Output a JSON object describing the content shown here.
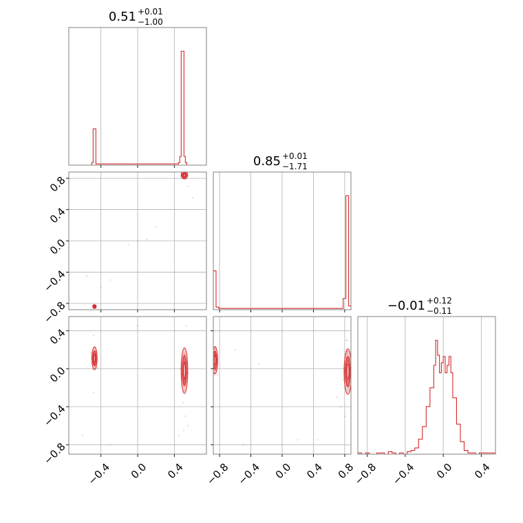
{
  "chart_data": {
    "type": "corner",
    "color": "#d62728",
    "grid": true,
    "titles": [
      {
        "value": "0.51",
        "plus": "+0.01",
        "minus": "−1.00"
      },
      {
        "value": "0.85",
        "plus": "+0.01",
        "minus": "−1.71"
      },
      {
        "value": "−0.01",
        "plus": "+0.12",
        "minus": "−0.11"
      }
    ],
    "params": [
      {
        "range": [
          -0.75,
          0.75
        ],
        "ticks": [
          -0.4,
          0.0,
          0.4
        ],
        "tick_labels": [
          "−0.4",
          "0.0",
          "0.4"
        ]
      },
      {
        "range": [
          -0.88,
          0.88
        ],
        "ticks": [
          -0.8,
          -0.4,
          0.0,
          0.4,
          0.8
        ],
        "tick_labels": [
          "−0.8",
          "−0.4",
          "0.0",
          "0.4",
          "0.8"
        ]
      },
      {
        "range": [
          -0.9,
          0.55
        ],
        "ticks": [
          -0.8,
          -0.4,
          0.0,
          0.4
        ],
        "tick_labels": [
          "−0.8",
          "−0.4",
          "0.0",
          "0.4"
        ]
      }
    ],
    "x_tick_labels_p3": [
      "−0.8",
      "−0.4",
      "0.0",
      "0.4"
    ],
    "histograms": [
      {
        "edges": [
          -0.5,
          -0.485,
          -0.47,
          -0.455,
          0.43,
          0.445,
          0.46,
          0.475,
          0.49,
          0.505,
          0.52,
          0.535
        ],
        "counts": [
          0.02,
          0.29,
          0.29,
          0.01,
          0.01,
          0.02,
          0.07,
          0.91,
          0.91,
          0.07,
          0.02
        ]
      },
      {
        "edges": [
          -0.88,
          -0.845,
          -0.81,
          0.78,
          0.815,
          0.85,
          0.88
        ],
        "counts": [
          0.31,
          0.02,
          0.01,
          0.09,
          0.91,
          0.03
        ]
      },
      {
        "edges": [
          -0.9,
          -0.86,
          -0.82,
          -0.78,
          -0.74,
          -0.7,
          -0.66,
          -0.62,
          -0.58,
          -0.54,
          -0.5,
          -0.46,
          -0.42,
          -0.38,
          -0.34,
          -0.3,
          -0.26,
          -0.22,
          -0.18,
          -0.14,
          -0.1,
          -0.08,
          -0.06,
          -0.04,
          -0.02,
          0.0,
          0.02,
          0.04,
          0.06,
          0.08,
          0.1,
          0.14,
          0.18,
          0.22,
          0.26,
          0.3,
          0.34,
          0.38,
          0.42,
          0.46,
          0.5,
          0.55
        ],
        "counts": [
          0.01,
          0.0,
          0.01,
          0.0,
          0.0,
          0.01,
          0.01,
          0.0,
          0.02,
          0.01,
          0.0,
          0.01,
          0.0,
          0.02,
          0.03,
          0.05,
          0.12,
          0.22,
          0.38,
          0.53,
          0.71,
          0.91,
          0.79,
          0.65,
          0.73,
          0.78,
          0.65,
          0.71,
          0.78,
          0.65,
          0.45,
          0.24,
          0.1,
          0.03,
          0.01,
          0.01,
          0.0,
          0.01,
          0.01,
          0.01,
          0.01
        ]
      }
    ],
    "scatter": [
      {
        "x": 0,
        "y": 1,
        "clusters": [
          {
            "cx": 0.51,
            "cy": 0.84,
            "sx": 0.015,
            "sy": 0.02
          },
          {
            "cx": -0.47,
            "cy": -0.84,
            "sx": 0.008,
            "sy": 0.01
          }
        ],
        "outliers": [
          [
            0.0,
            0.0
          ],
          [
            0.1,
            0.02
          ],
          [
            0.2,
            0.18
          ],
          [
            -0.3,
            -0.5
          ],
          [
            -0.4,
            -0.6
          ],
          [
            -0.55,
            -0.45
          ],
          [
            0.6,
            0.55
          ],
          [
            0.55,
            0.7
          ],
          [
            -0.1,
            -0.05
          ]
        ]
      },
      {
        "x": 0,
        "y": 2,
        "clusters": [
          {
            "cx": -0.47,
            "cy": 0.11,
            "sx": 0.012,
            "sy": 0.05
          },
          {
            "cx": 0.51,
            "cy": -0.02,
            "sx": 0.015,
            "sy": 0.1
          }
        ],
        "outliers": [
          [
            -0.48,
            -0.25
          ],
          [
            -0.48,
            0.35
          ],
          [
            0.52,
            -0.5
          ],
          [
            0.55,
            -0.6
          ],
          [
            0.5,
            -0.65
          ],
          [
            0.45,
            -0.7
          ],
          [
            -0.6,
            -0.7
          ],
          [
            -0.3,
            -0.8
          ],
          [
            0.0,
            0.45
          ],
          [
            0.53,
            0.45
          ]
        ]
      },
      {
        "x": 1,
        "y": 2,
        "clusters": [
          {
            "cx": -0.86,
            "cy": 0.09,
            "sx": 0.015,
            "sy": 0.06
          },
          {
            "cx": 0.84,
            "cy": -0.03,
            "sx": 0.02,
            "sy": 0.1
          }
        ],
        "outliers": [
          [
            -0.6,
            0.2
          ],
          [
            -0.3,
            0.05
          ],
          [
            0.7,
            -0.3
          ],
          [
            0.75,
            -0.4
          ],
          [
            0.8,
            -0.5
          ],
          [
            0.45,
            -0.75
          ],
          [
            0.82,
            0.3
          ],
          [
            -0.5,
            -0.8
          ],
          [
            0.2,
            -0.75
          ]
        ]
      }
    ]
  }
}
